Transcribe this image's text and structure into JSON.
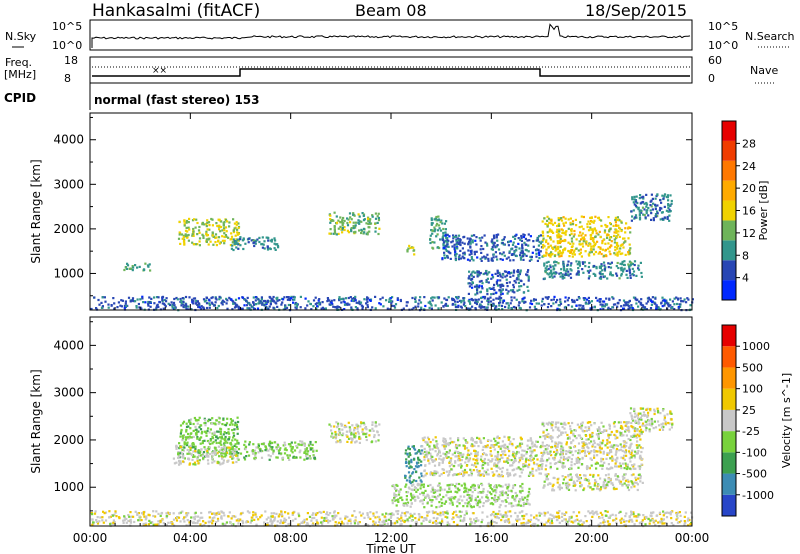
{
  "header": {
    "station": "Hankasalmi (fitACF)",
    "beam": "Beam 08",
    "date": "18/Sep/2015"
  },
  "panels": {
    "nsky": {
      "label": "N.Sky",
      "tick_top": "10^5",
      "tick_bottom": "10^0"
    },
    "nsearch": {
      "label": "N.Search",
      "tick_top": "10^5",
      "tick_bottom": "10^0"
    },
    "freq": {
      "label": "Freq.",
      "unit": "[MHz]",
      "tick_top": "18",
      "tick_bottom": "8"
    },
    "nave": {
      "label": "Nave",
      "tick_top": "60",
      "tick_bottom": "0"
    },
    "cpid": {
      "label": "CPID",
      "text": "normal (fast stereo) 153"
    }
  },
  "chart_data": [
    {
      "type": "heatmap",
      "title": "",
      "xlabel": "",
      "ylabel": "Slant Range [km]",
      "xlim_hours": [
        0,
        24
      ],
      "ylim": [
        180,
        4600
      ],
      "xticks": [
        "00:00",
        "04:00",
        "08:00",
        "12:00",
        "16:00",
        "20:00",
        "00:00"
      ],
      "yticks": [
        1000,
        2000,
        3000,
        4000
      ],
      "colorbar": {
        "label": "Power [dB]",
        "ticks": [
          "4",
          "8",
          "12",
          "16",
          "20",
          "24",
          "28"
        ],
        "colors": [
          "#0028ff",
          "#2846b4",
          "#32968c",
          "#6eb45a",
          "#f0d200",
          "#ffaa00",
          "#ff7800",
          "#f03c00",
          "#e60000"
        ],
        "range": [
          0,
          32
        ]
      },
      "scatter_bands": [
        {
          "t0": 1.3,
          "t1": 2.4,
          "r0": 1080,
          "r1": 1250,
          "value": 10
        },
        {
          "t0": 3.5,
          "t1": 5.9,
          "r0": 1650,
          "r1": 2250,
          "value": 14
        },
        {
          "t0": 5.6,
          "t1": 7.5,
          "r0": 1550,
          "r1": 1850,
          "value": 8
        },
        {
          "t0": 9.5,
          "t1": 11.5,
          "r0": 1900,
          "r1": 2400,
          "value": 12
        },
        {
          "t0": 13.5,
          "t1": 14.2,
          "r0": 1550,
          "r1": 2300,
          "value": 10
        },
        {
          "t0": 12.6,
          "t1": 13.0,
          "r0": 1450,
          "r1": 1650,
          "value": 14
        },
        {
          "t0": 14.0,
          "t1": 18.0,
          "r0": 1300,
          "r1": 1900,
          "value": 6
        },
        {
          "t0": 15.0,
          "t1": 17.5,
          "r0": 550,
          "r1": 1100,
          "value": 6
        },
        {
          "t0": 18.0,
          "t1": 21.5,
          "r0": 1400,
          "r1": 2300,
          "value": 16
        },
        {
          "t0": 18.0,
          "t1": 22.0,
          "r0": 900,
          "r1": 1300,
          "value": 8
        },
        {
          "t0": 21.5,
          "t1": 23.2,
          "r0": 2200,
          "r1": 2800,
          "value": 8
        },
        {
          "t0": 0.0,
          "t1": 24.0,
          "r0": 200,
          "r1": 500,
          "value": 6
        }
      ]
    },
    {
      "type": "heatmap",
      "title": "",
      "xlabel": "Time UT",
      "ylabel": "Slant Range [km]",
      "xlim_hours": [
        0,
        24
      ],
      "ylim": [
        180,
        4600
      ],
      "xticks": [
        "00:00",
        "04:00",
        "08:00",
        "12:00",
        "16:00",
        "20:00",
        "00:00"
      ],
      "yticks": [
        1000,
        2000,
        3000,
        4000
      ],
      "colorbar": {
        "label": "Velocity [m s^-1]",
        "ticks": [
          "1000",
          "500",
          "100",
          "25",
          "-25",
          "-100",
          "-500",
          "-1000"
        ],
        "colors": [
          "#2846c8",
          "#3c8cb4",
          "#3ca050",
          "#78d23c",
          "#c8c8c8",
          "#f0c800",
          "#ff9600",
          "#ff5a00",
          "#e60000"
        ],
        "range": [
          -1200,
          1200
        ]
      },
      "scatter_bands": [
        {
          "t0": 3.5,
          "t1": 5.9,
          "r0": 1650,
          "r1": 2500,
          "value": -300
        },
        {
          "t0": 5.6,
          "t1": 9.0,
          "r0": 1600,
          "r1": 2000,
          "value": -250
        },
        {
          "t0": 3.3,
          "t1": 5.8,
          "r0": 1500,
          "r1": 1900,
          "value": 0
        },
        {
          "t0": 9.5,
          "t1": 11.5,
          "r0": 1950,
          "r1": 2400,
          "value": 0
        },
        {
          "t0": 12.5,
          "t1": 13.2,
          "r0": 1100,
          "r1": 1900,
          "value": -700
        },
        {
          "t0": 13.2,
          "t1": 18.0,
          "r0": 1250,
          "r1": 2100,
          "value": 0
        },
        {
          "t0": 18.0,
          "t1": 22.0,
          "r0": 1400,
          "r1": 2400,
          "value": 0
        },
        {
          "t0": 18.0,
          "t1": 22.0,
          "r0": 950,
          "r1": 1300,
          "value": 0
        },
        {
          "t0": 21.5,
          "t1": 23.2,
          "r0": 2200,
          "r1": 2700,
          "value": 0
        },
        {
          "t0": 12.0,
          "t1": 17.5,
          "r0": 600,
          "r1": 1100,
          "value": -150
        },
        {
          "t0": 0.0,
          "t1": 24.0,
          "r0": 200,
          "r1": 520,
          "value": 40
        }
      ]
    }
  ]
}
